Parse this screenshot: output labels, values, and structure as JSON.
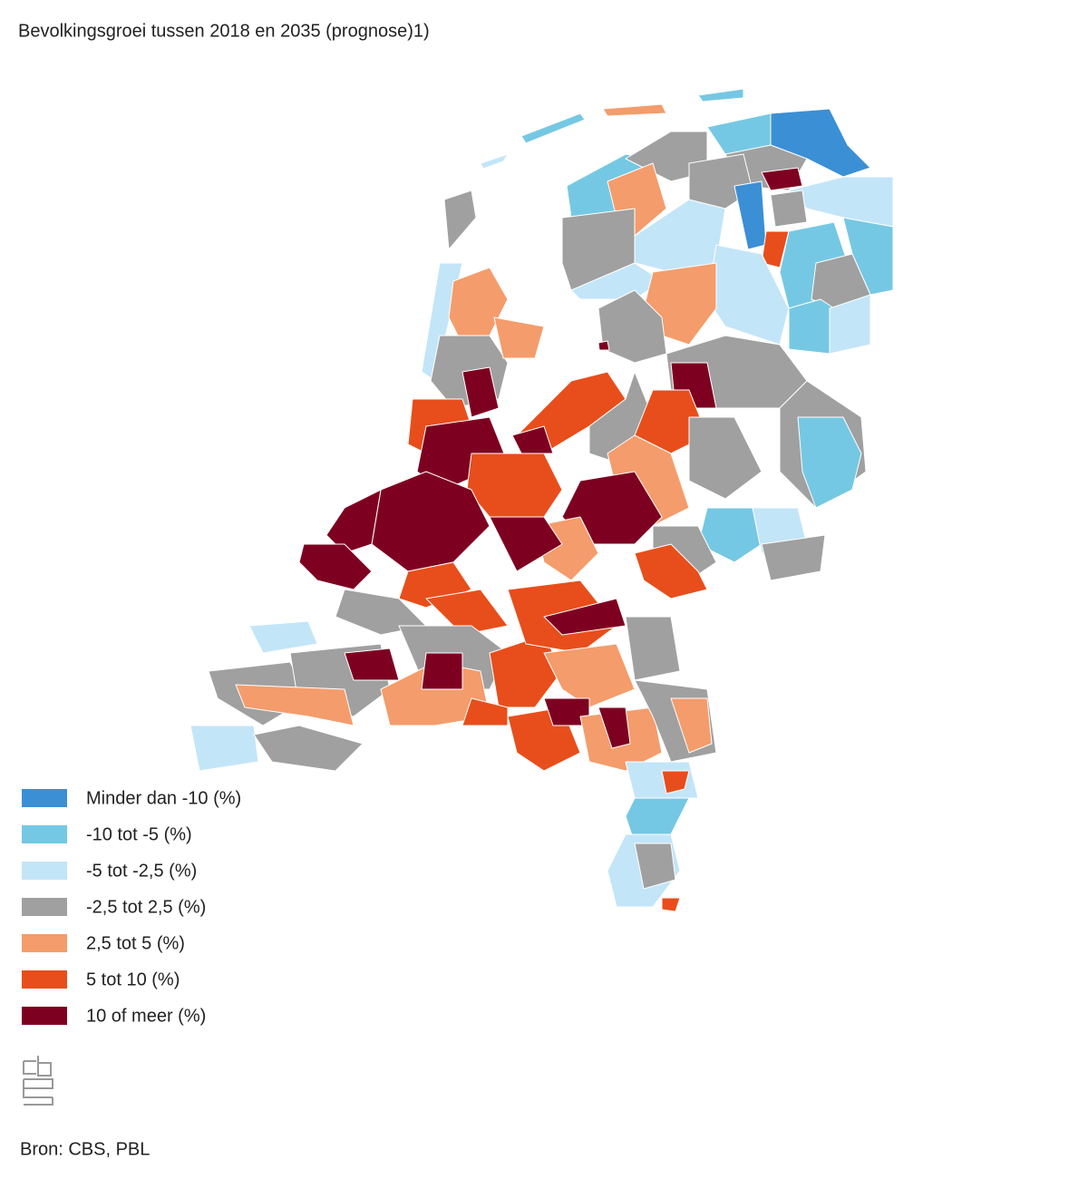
{
  "title": "Bevolkingsgroei tussen 2018 en 2035 (prognose)1)",
  "legend": [
    {
      "label": "Minder dan -10 (%)",
      "color": "#3b8fd5"
    },
    {
      "label": "-10 tot -5 (%)",
      "color": "#75c8e3"
    },
    {
      "label": "-5 tot -2,5 (%)",
      "color": "#c3e5f8"
    },
    {
      "label": "-2,5 tot 2,5 (%)",
      "color": "#a0a0a0"
    },
    {
      "label": "2,5 tot 5 (%)",
      "color": "#f49c6b"
    },
    {
      "label": "5 tot 10 (%)",
      "color": "#e84e1b"
    },
    {
      "label": "10 of meer (%)",
      "color": "#7e0021"
    }
  ],
  "source": "Bron: CBS, PBL"
}
